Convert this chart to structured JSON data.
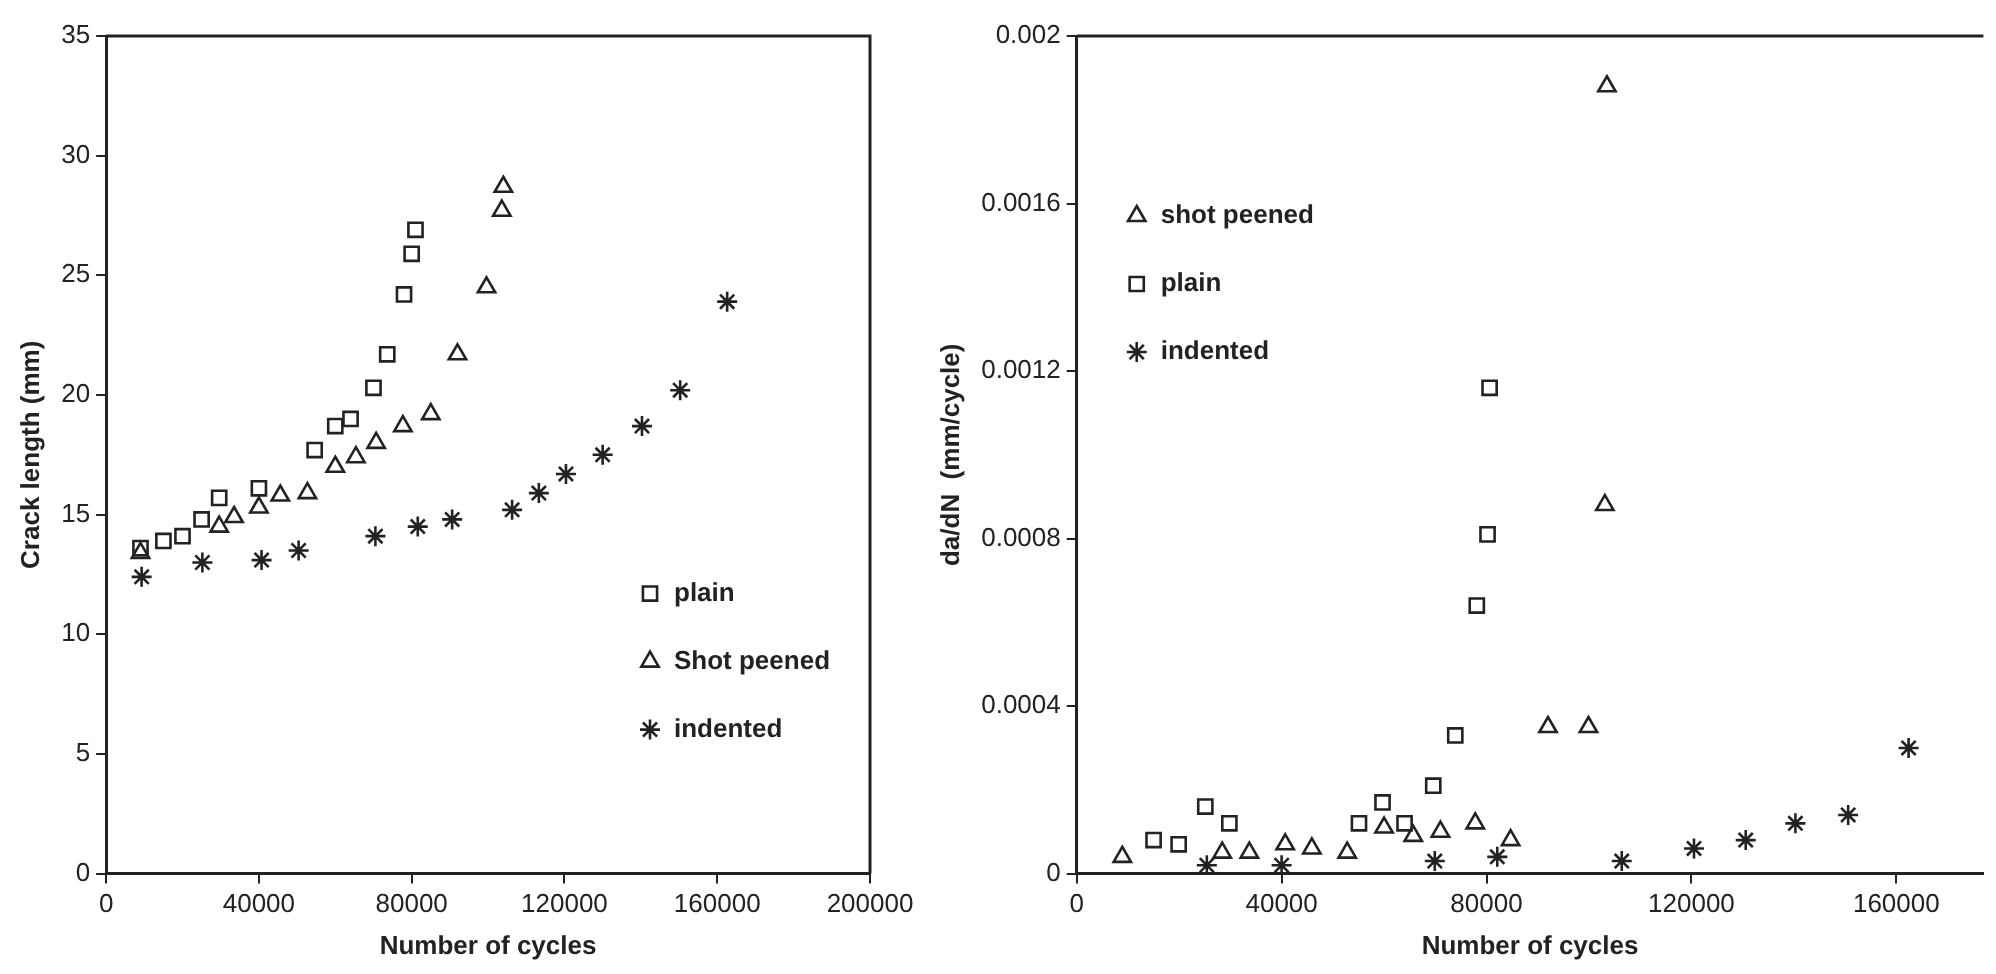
{
  "chart_data": [
    {
      "type": "scatter",
      "xlabel": "Number of cycles",
      "ylabel": "Crack length (mm)",
      "xlim": [
        0,
        200000
      ],
      "xticks": [
        0,
        40000,
        80000,
        120000,
        160000,
        200000
      ],
      "ylim": [
        0,
        35
      ],
      "yticks": [
        0,
        5,
        10,
        15,
        20,
        25,
        30,
        35
      ],
      "grid": false,
      "legend": "bottom right",
      "series": [
        {
          "name": "plain",
          "color": "#222222",
          "marker": "square",
          "x": [
            9000,
            15000,
            20000,
            25000,
            29600,
            40000,
            54600,
            60000,
            64000,
            70000,
            73600,
            78000,
            80000,
            81000
          ],
          "values": [
            13.6,
            13.9,
            14.1,
            14.8,
            15.7,
            16.1,
            17.7,
            18.7,
            19.0,
            20.3,
            21.7,
            24.2,
            25.9,
            26.9
          ]
        },
        {
          "name": "Shot peened",
          "color": "#222222",
          "marker": "triangle",
          "x": [
            9000,
            29600,
            33500,
            40000,
            45600,
            52700,
            60000,
            65400,
            70700,
            77700,
            85000,
            92000,
            99600,
            103600,
            104000
          ],
          "values": [
            13.4,
            14.5,
            14.9,
            15.3,
            15.8,
            15.9,
            17.0,
            17.4,
            18.0,
            18.7,
            19.2,
            21.7,
            24.5,
            27.7,
            28.7
          ]
        },
        {
          "name": "indented",
          "color": "#222222",
          "marker": "cross",
          "x": [
            9300,
            25200,
            40700,
            50400,
            70500,
            81600,
            90600,
            106300,
            113300,
            120400,
            130000,
            140300,
            150300,
            162600
          ],
          "values": [
            12.4,
            13.0,
            13.1,
            13.5,
            14.1,
            14.5,
            14.8,
            15.2,
            15.9,
            16.7,
            17.5,
            18.7,
            20.2,
            23.9
          ]
        }
      ]
    },
    {
      "type": "scatter",
      "xlabel": "Number of cycles",
      "ylabel": "da/dN  (mm/cycle)",
      "xlim": [
        0,
        177000
      ],
      "xticks": [
        0,
        40000,
        80000,
        120000,
        160000
      ],
      "ylim": [
        0,
        0.002
      ],
      "yticks": [
        0,
        0.0004,
        0.0008,
        0.0012,
        0.0016,
        0.002
      ],
      "grid": false,
      "legend": "top left",
      "series": [
        {
          "name": "shot peened",
          "color": "#222222",
          "marker": "triangle",
          "x": [
            8900,
            28400,
            33700,
            40700,
            45900,
            52800,
            60000,
            65700,
            71000,
            77800,
            84700,
            92000,
            99900,
            103100,
            103500
          ],
          "values": [
            4e-05,
            5e-05,
            5e-05,
            7e-05,
            6e-05,
            5e-05,
            0.00011,
            9e-05,
            0.0001,
            0.00012,
            8e-05,
            0.00035,
            0.00035,
            0.00088,
            0.00188
          ]
        },
        {
          "name": "plain",
          "color": "#222222",
          "marker": "square",
          "x": [
            15000,
            19900,
            25100,
            29800,
            55100,
            59700,
            64000,
            69600,
            73900,
            78100,
            80200,
            80600
          ],
          "values": [
            8e-05,
            7e-05,
            0.00016,
            0.00012,
            0.00012,
            0.00017,
            0.00012,
            0.00021,
            0.00033,
            0.00064,
            0.00081,
            0.00116
          ]
        },
        {
          "name": "indented",
          "color": "#222222",
          "marker": "cross",
          "x": [
            25400,
            40000,
            69900,
            82100,
            106400,
            120500,
            130600,
            140300,
            150600,
            162400
          ],
          "values": [
            2e-05,
            2e-05,
            3e-05,
            4e-05,
            3e-05,
            6e-05,
            8e-05,
            0.00012,
            0.00014,
            0.0003
          ]
        }
      ]
    }
  ]
}
